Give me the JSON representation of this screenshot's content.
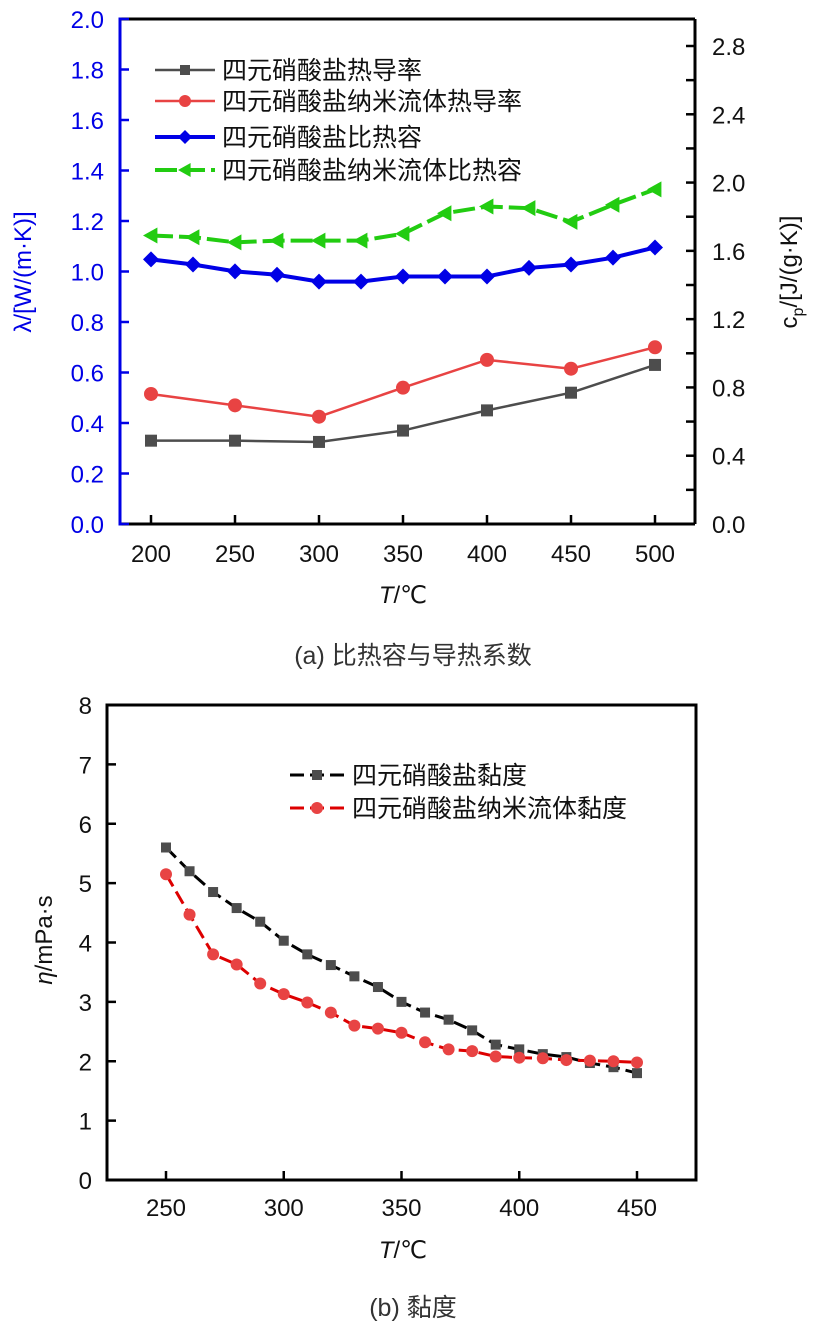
{
  "chart_data": [
    {
      "type": "line",
      "caption": "(a) 比热容与导热系数",
      "xlabel": "T/℃",
      "xlabel_italic": "T",
      "xlabel_unit": "/℃",
      "ylabel_left": "λ/[W/(m·K)]",
      "ylabel_right": "c_p/[J/(g·K)]",
      "xlim": [
        180,
        525
      ],
      "ylim_left": [
        0,
        2.0
      ],
      "ylim_right": [
        0,
        2.96
      ],
      "x_ticks": [
        200,
        250,
        300,
        350,
        400,
        450,
        500
      ],
      "y_ticks_left": [
        "0.0",
        "0.2",
        "0.4",
        "0.6",
        "0.8",
        "1.0",
        "1.2",
        "1.4",
        "1.6",
        "1.8",
        "2.0"
      ],
      "y_ticks_right": [
        "0.0",
        "0.4",
        "0.8",
        "1.2",
        "1.6",
        "2.0",
        "2.4",
        "2.8"
      ],
      "left_axis_color": "#0000e6",
      "legend_position": "top-left",
      "grid": false,
      "series": [
        {
          "name": "四元硝酸盐热导率",
          "axis": "left",
          "color": "#4d4d4d",
          "marker": "square",
          "dash": "solid",
          "x": [
            200,
            250,
            300,
            350,
            400,
            450,
            500
          ],
          "values": [
            0.33,
            0.33,
            0.325,
            0.37,
            0.45,
            0.52,
            0.63
          ]
        },
        {
          "name": "四元硝酸盐纳米流体热导率",
          "axis": "left",
          "color": "#e84343",
          "marker": "circle",
          "dash": "solid",
          "x": [
            200,
            250,
            300,
            350,
            400,
            450,
            500
          ],
          "values": [
            0.515,
            0.47,
            0.425,
            0.54,
            0.65,
            0.615,
            0.7
          ]
        },
        {
          "name": "四元硝酸盐比热容",
          "axis": "right",
          "color": "#0000e6",
          "marker": "diamond",
          "dash": "solid",
          "x": [
            200,
            225,
            250,
            275,
            300,
            325,
            350,
            375,
            400,
            425,
            450,
            475,
            500
          ],
          "values": [
            1.55,
            1.52,
            1.48,
            1.46,
            1.42,
            1.42,
            1.45,
            1.45,
            1.45,
            1.5,
            1.52,
            1.56,
            1.62
          ]
        },
        {
          "name": "四元硝酸盐纳米流体比热容",
          "axis": "right",
          "color": "#22cc11",
          "marker": "triangle-left",
          "dash": "dashed",
          "x": [
            200,
            225,
            250,
            275,
            300,
            325,
            350,
            375,
            400,
            425,
            450,
            475,
            500
          ],
          "values": [
            1.69,
            1.68,
            1.65,
            1.66,
            1.66,
            1.66,
            1.7,
            1.82,
            1.86,
            1.85,
            1.77,
            1.87,
            1.96
          ]
        }
      ]
    },
    {
      "type": "line",
      "caption": "(b) 黏度",
      "xlabel": "T/℃",
      "xlabel_italic": "T",
      "xlabel_unit": "/℃",
      "ylabel": "η/mPa·s",
      "ylabel_italic": "η",
      "ylabel_unit": "/mPa·s",
      "xlim": [
        225,
        475
      ],
      "ylim": [
        0,
        8
      ],
      "x_ticks": [
        250,
        300,
        350,
        400,
        450
      ],
      "y_ticks": [
        "0",
        "1",
        "2",
        "3",
        "4",
        "5",
        "6",
        "7",
        "8"
      ],
      "legend_position": "top-right",
      "grid": false,
      "series": [
        {
          "name": "四元硝酸盐黏度",
          "color": "#4d4d4d",
          "line_color": "#000000",
          "marker": "square",
          "dash": "dashed",
          "x": [
            250,
            260,
            270,
            280,
            290,
            300,
            310,
            320,
            330,
            340,
            350,
            360,
            370,
            380,
            390,
            400,
            410,
            420,
            430,
            440,
            450
          ],
          "values": [
            5.6,
            5.2,
            4.85,
            4.58,
            4.35,
            4.03,
            3.8,
            3.62,
            3.43,
            3.25,
            3.0,
            2.82,
            2.7,
            2.52,
            2.28,
            2.2,
            2.12,
            2.07,
            1.97,
            1.9,
            1.8
          ]
        },
        {
          "name": "四元硝酸盐纳米流体黏度",
          "color": "#e84343",
          "line_color": "#dd0000",
          "marker": "circle",
          "dash": "dashed",
          "x": [
            250,
            260,
            270,
            280,
            290,
            300,
            310,
            320,
            330,
            340,
            350,
            360,
            370,
            380,
            390,
            400,
            410,
            420,
            430,
            440,
            450
          ],
          "values": [
            5.15,
            4.47,
            3.8,
            3.63,
            3.31,
            3.13,
            2.99,
            2.82,
            2.6,
            2.55,
            2.48,
            2.32,
            2.2,
            2.17,
            2.08,
            2.06,
            2.05,
            2.02,
            2.01,
            2.0,
            1.98
          ]
        }
      ]
    }
  ]
}
